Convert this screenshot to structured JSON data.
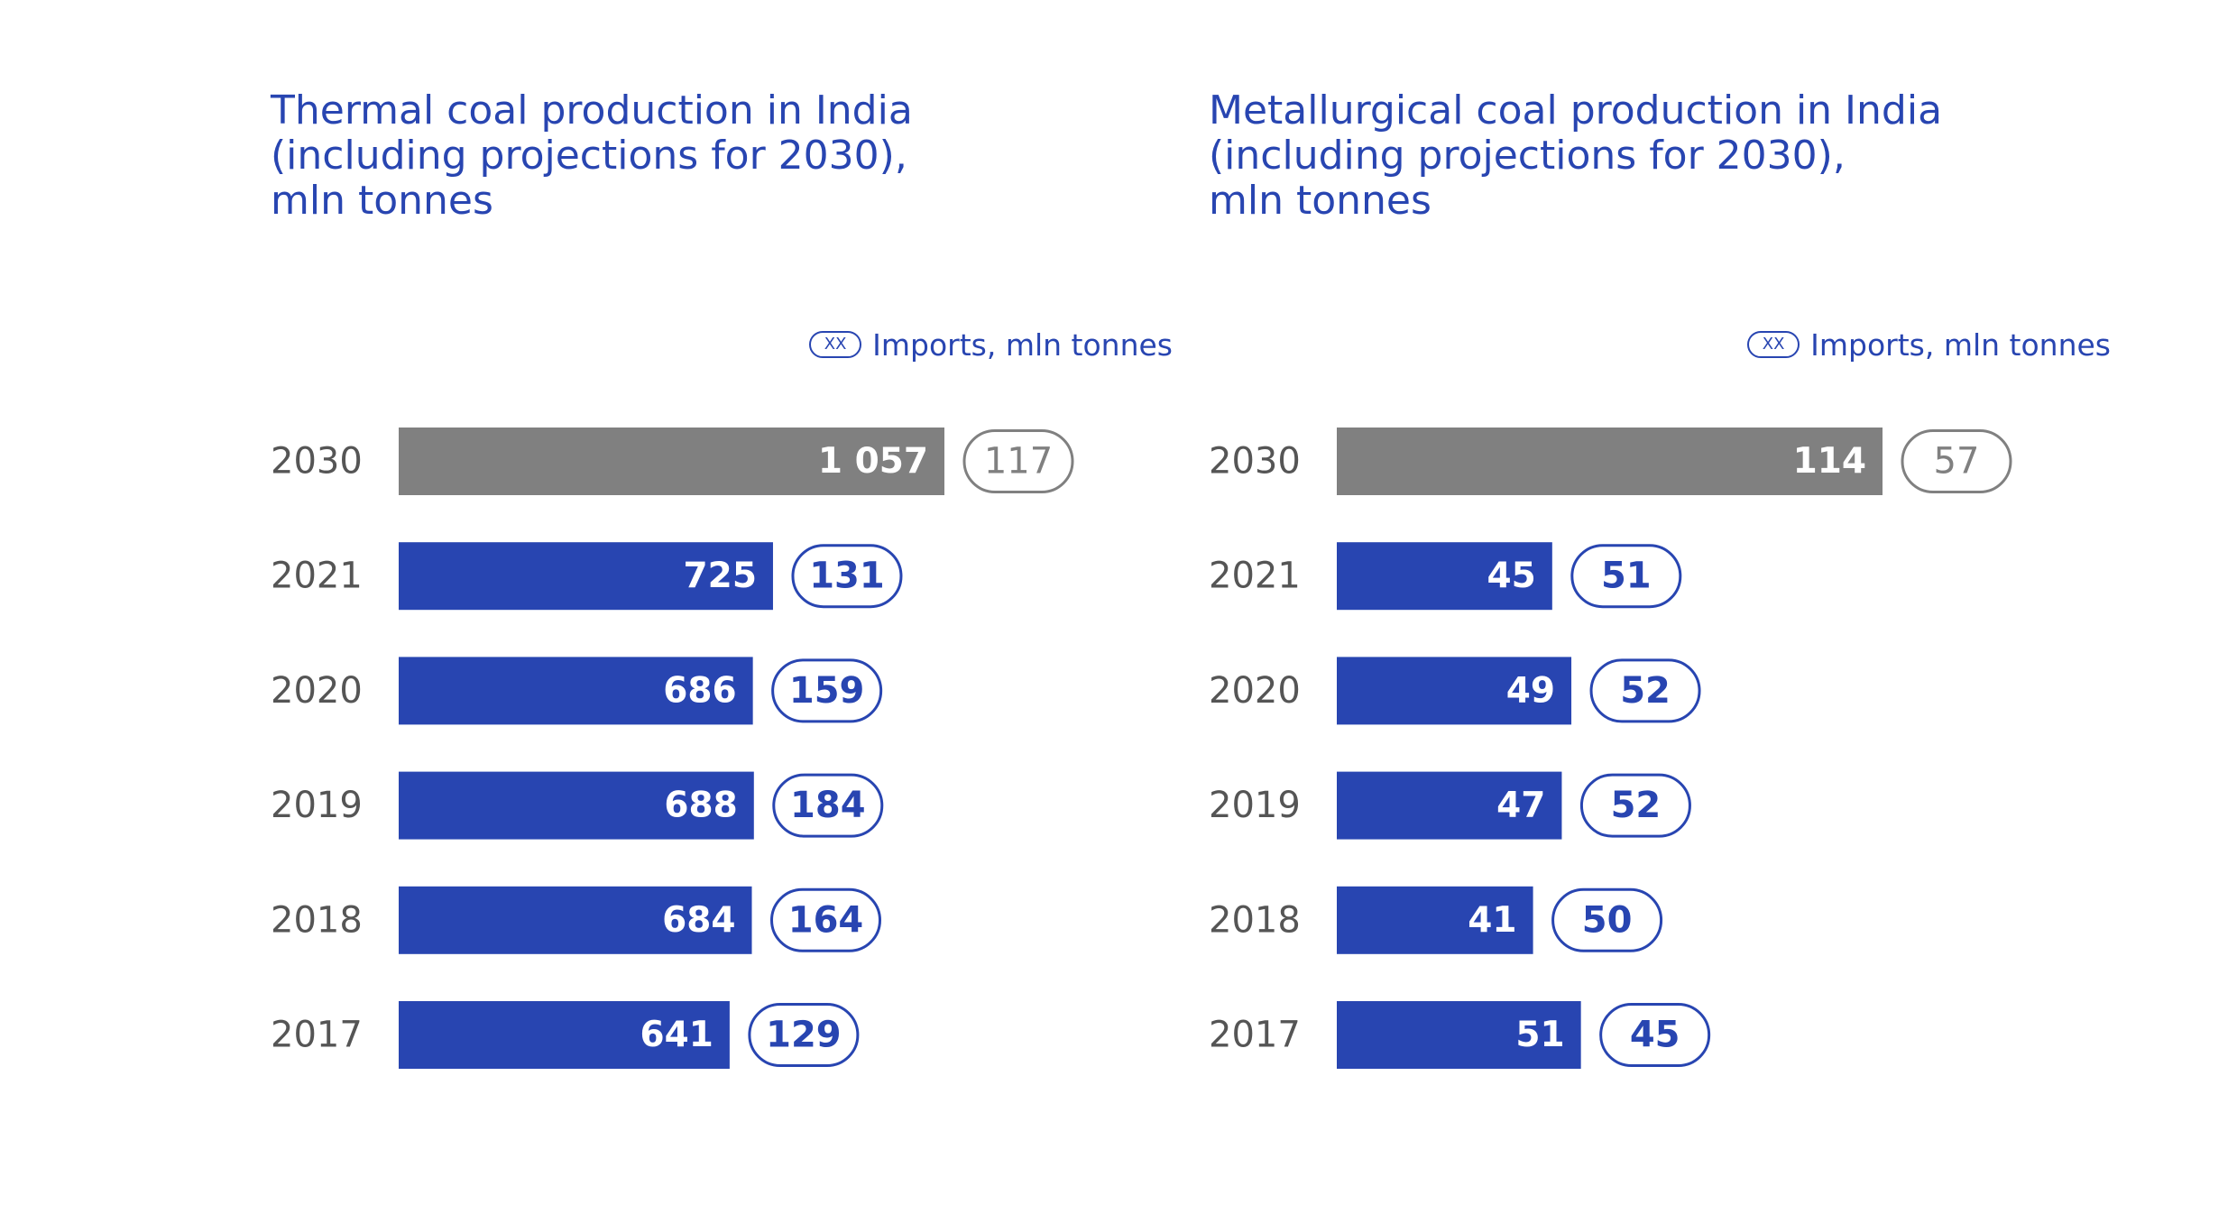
{
  "colors": {
    "accent": "#2845b1",
    "projection": "#808080",
    "year_text": "#555555"
  },
  "legend": {
    "pill_text": "XX",
    "label": "Imports, mln tonnes"
  },
  "chart_data": [
    {
      "type": "bar",
      "orientation": "horizontal",
      "title_lines": [
        "Thermal coal production in India",
        "(including projections for 2030),",
        "mln tonnes"
      ],
      "categories": [
        "2030",
        "2021",
        "2020",
        "2019",
        "2018",
        "2017"
      ],
      "values": [
        1057,
        725,
        686,
        688,
        684,
        641
      ],
      "value_labels": [
        "1 057",
        "725",
        "686",
        "688",
        "684",
        "641"
      ],
      "imports": [
        117,
        131,
        159,
        184,
        164,
        129
      ],
      "projection_categories": [
        "2030"
      ],
      "unit": "mln tonnes",
      "xlim": [
        0,
        1057
      ],
      "legend_position": "top-right",
      "grid": false
    },
    {
      "type": "bar",
      "orientation": "horizontal",
      "title_lines": [
        "Metallurgical coal production in India",
        "(including projections for 2030),",
        "mln tonnes"
      ],
      "categories": [
        "2030",
        "2021",
        "2020",
        "2019",
        "2018",
        "2017"
      ],
      "values": [
        114,
        45,
        49,
        47,
        41,
        51
      ],
      "value_labels": [
        "114",
        "45",
        "49",
        "47",
        "41",
        "51"
      ],
      "imports": [
        57,
        51,
        52,
        52,
        50,
        45
      ],
      "projection_categories": [
        "2030"
      ],
      "unit": "mln tonnes",
      "xlim": [
        0,
        114
      ],
      "legend_position": "top-right",
      "grid": false
    }
  ]
}
